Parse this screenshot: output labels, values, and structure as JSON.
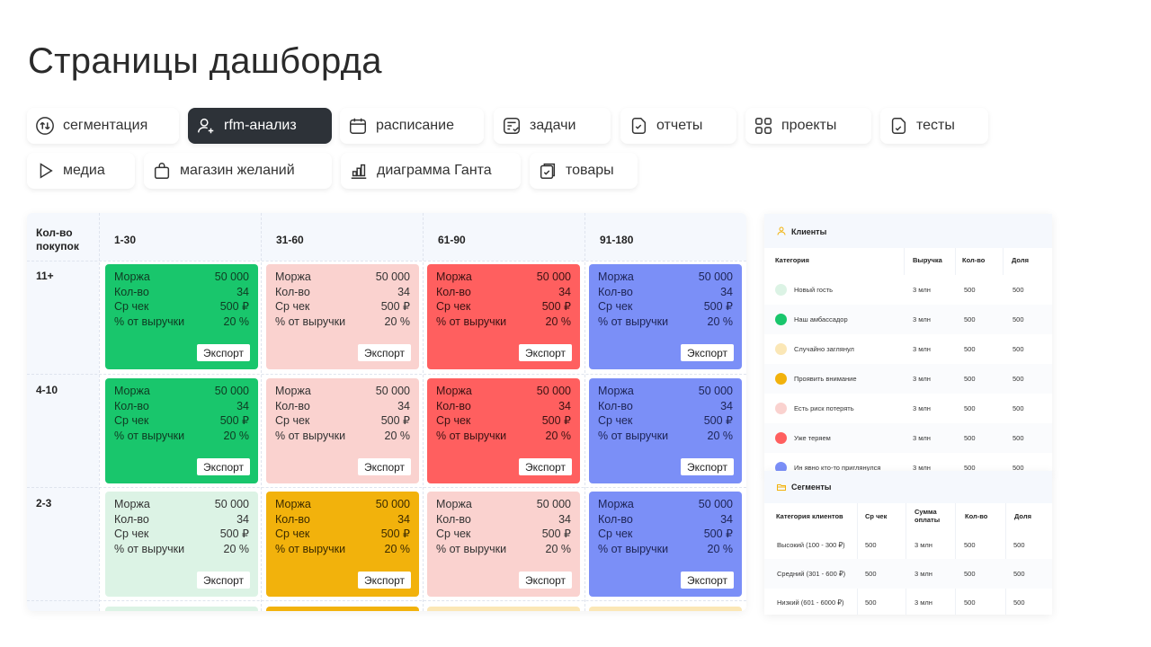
{
  "page_title": "Страницы дашборда",
  "tabs": [
    {
      "label": "сегментация",
      "icon": "arrows-updown-circle-icon"
    },
    {
      "label": "rfm-анализ",
      "icon": "user-plus-icon",
      "active": true
    },
    {
      "label": "расписание",
      "icon": "calendar-icon"
    },
    {
      "label": "задачи",
      "icon": "task-list-icon"
    },
    {
      "label": "отчеты",
      "icon": "report-icon"
    },
    {
      "label": "проекты",
      "icon": "grid-icon"
    },
    {
      "label": "тесты",
      "icon": "test-icon"
    },
    {
      "label": "медиа",
      "icon": "play-icon"
    },
    {
      "label": "магазин желаний",
      "icon": "bag-icon"
    },
    {
      "label": "диаграмма Ганта",
      "icon": "gantt-chart-icon"
    },
    {
      "label": "товары",
      "icon": "products-icon"
    }
  ],
  "rfm": {
    "corner_label": "Кол-во покупок",
    "columns": [
      "1-30",
      "31-60",
      "61-90",
      "91-180"
    ],
    "rows": [
      "11+",
      "4-10",
      "2-3"
    ],
    "metric_labels": [
      "Моржа",
      "Кол-во",
      "Ср чек",
      "% от выручки"
    ],
    "metric_values": [
      "50 000",
      "34",
      "500 ₽",
      "20 %"
    ],
    "export_label": "Экспорт"
  },
  "clients": {
    "title": "Клиенты",
    "headers": [
      "Категория",
      "Выручка",
      "Кол-во",
      "Доля"
    ],
    "rows": [
      {
        "name": "Новый гость",
        "revenue": "3 млн",
        "count": "500",
        "share": "500",
        "color": "#dcf3e5"
      },
      {
        "name": "Наш амбассадор",
        "revenue": "3 млн",
        "count": "500",
        "share": "500",
        "color": "#19c66c"
      },
      {
        "name": "Случайно заглянул",
        "revenue": "3 млн",
        "count": "500",
        "share": "500",
        "color": "#fbe7b6"
      },
      {
        "name": "Проявить внимание",
        "revenue": "3 млн",
        "count": "500",
        "share": "500",
        "color": "#f2b20c"
      },
      {
        "name": "Есть риск потерять",
        "revenue": "3 млн",
        "count": "500",
        "share": "500",
        "color": "#fad2cf"
      },
      {
        "name": "Уже теряем",
        "revenue": "3 млн",
        "count": "500",
        "share": "500",
        "color": "#ff5f5f"
      },
      {
        "name": "Ин явно кто-то приглянулся",
        "revenue": "3 млн",
        "count": "500",
        "share": "500",
        "color": "#7b8ff7"
      }
    ]
  },
  "segments": {
    "title": "Сегменты",
    "headers": [
      "Категория клиентов",
      "Ср чек",
      "Сумма оплаты",
      "Кол-во",
      "Доля"
    ],
    "rows": [
      {
        "name": "Высокий (100 - 300 ₽)",
        "check": "500",
        "sum": "3 млн",
        "count": "500",
        "share": "500"
      },
      {
        "name": "Средний (301 - 600 ₽)",
        "check": "500",
        "sum": "3 млн",
        "count": "500",
        "share": "500"
      },
      {
        "name": "Низкий (601 - 6000 ₽)",
        "check": "500",
        "sum": "3 млн",
        "count": "500",
        "share": "500"
      }
    ]
  }
}
